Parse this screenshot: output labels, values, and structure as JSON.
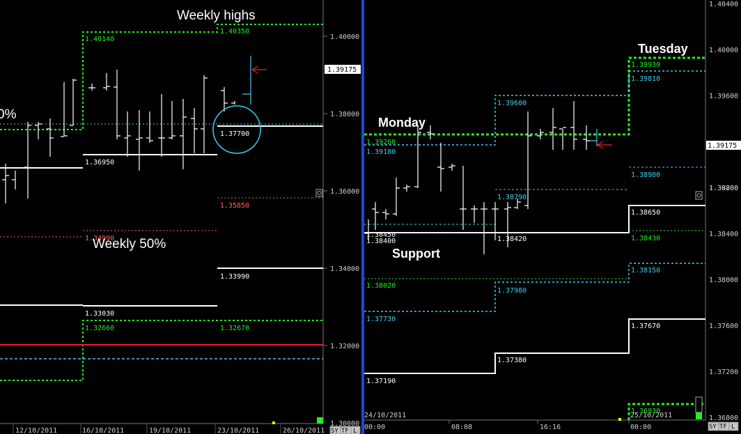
{
  "left": {
    "annotations": {
      "weekly_highs": "Weekly highs",
      "weekly_50": "Weekly 50%",
      "partial_pct": "0%"
    },
    "price_tag": "1.39175",
    "axis_ticks": [
      "1.40000",
      "1.38000",
      "1.36000",
      "1.34000",
      "1.32000",
      "1.30000"
    ],
    "date_labels": [
      "12/10/2011",
      "16/10/2011",
      "19/10/2011",
      "23/10/2011",
      "26/10/2011"
    ],
    "buttons": [
      "SY",
      "TF",
      "L"
    ],
    "levels": [
      {
        "text": "1.40140",
        "color": "#22ee22"
      },
      {
        "text": "1.40350",
        "color": "#22ee22"
      },
      {
        "text": "1.37700",
        "color": "#ffffff"
      },
      {
        "text": "1.36950",
        "color": "#ffffff"
      },
      {
        "text": "1.35850",
        "color": "#ff6655"
      },
      {
        "text": "1.34990",
        "color": "#ff6655"
      },
      {
        "text": "1.33990",
        "color": "#ffffff"
      },
      {
        "text": "1.33030",
        "color": "#ffffff"
      },
      {
        "text": "1.32660",
        "color": "#22ee22"
      },
      {
        "text": "1.32670",
        "color": "#22ee22"
      }
    ]
  },
  "right": {
    "annotations": {
      "tuesday": "Tuesday",
      "monday": "Monday",
      "support": "Support"
    },
    "price_tag": "1.39175",
    "axis_ticks": [
      "1.40400",
      "1.40000",
      "1.39600",
      "1.39200",
      "1.38800",
      "1.38400",
      "1.38000",
      "1.37600",
      "1.37200",
      "1.36800"
    ],
    "time_labels": [
      "24/10/2011",
      "00:00",
      "08:08",
      "16:16",
      "25/10/2011",
      "00:00"
    ],
    "buttons": [
      "SY",
      "TF",
      "L"
    ],
    "levels": [
      {
        "text": "1.39930",
        "color": "#22ee22"
      },
      {
        "text": "1.39810",
        "color": "#44ccee"
      },
      {
        "text": "1.39600",
        "color": "#44ccee"
      },
      {
        "text": "1.39260",
        "color": "#22ee22"
      },
      {
        "text": "1.39180",
        "color": "#44ccee"
      },
      {
        "text": "1.38980",
        "color": "#44ccee"
      },
      {
        "text": "1.38790",
        "color": "#44ccee"
      },
      {
        "text": "1.38650",
        "color": "#ffffff"
      },
      {
        "text": "1.38450",
        "color": "#ffffff"
      },
      {
        "text": "1.38400",
        "color": "#ffffff"
      },
      {
        "text": "1.38420",
        "color": "#ffffff"
      },
      {
        "text": "1.38430",
        "color": "#22ee22"
      },
      {
        "text": "1.38150",
        "color": "#44ccee"
      },
      {
        "text": "1.38020",
        "color": "#22ee22"
      },
      {
        "text": "1.37980",
        "color": "#44ccee"
      },
      {
        "text": "1.37730",
        "color": "#44ccee"
      },
      {
        "text": "1.37670",
        "color": "#ffffff"
      },
      {
        "text": "1.37380",
        "color": "#ffffff"
      },
      {
        "text": "1.37190",
        "color": "#ffffff"
      },
      {
        "text": "1.36930",
        "color": "#22ee22"
      }
    ]
  },
  "chart_data": [
    {
      "type": "line",
      "title": "",
      "ylim": [
        1.3,
        1.405
      ],
      "x": [
        "12/10/2011",
        "16/10/2011",
        "19/10/2011",
        "23/10/2011",
        "26/10/2011"
      ],
      "last_price": 1.39175,
      "weekly_levels": [
        1.4014,
        1.4035,
        1.377,
        1.3695,
        1.3585,
        1.3499,
        1.3399,
        1.3303,
        1.3266,
        1.3267
      ]
    },
    {
      "type": "line",
      "title": "",
      "ylim": [
        1.368,
        1.404
      ],
      "x": [
        "24/10/2011 00:00",
        "08:08",
        "16:16",
        "25/10/2011 00:00"
      ],
      "last_price": 1.39175,
      "daily_levels": [
        1.3993,
        1.3981,
        1.396,
        1.3926,
        1.3918,
        1.3898,
        1.3879,
        1.3865,
        1.3845,
        1.384,
        1.3842,
        1.3843,
        1.3815,
        1.3802,
        1.3798,
        1.3773,
        1.3767,
        1.3738,
        1.3719,
        1.3693
      ]
    }
  ]
}
